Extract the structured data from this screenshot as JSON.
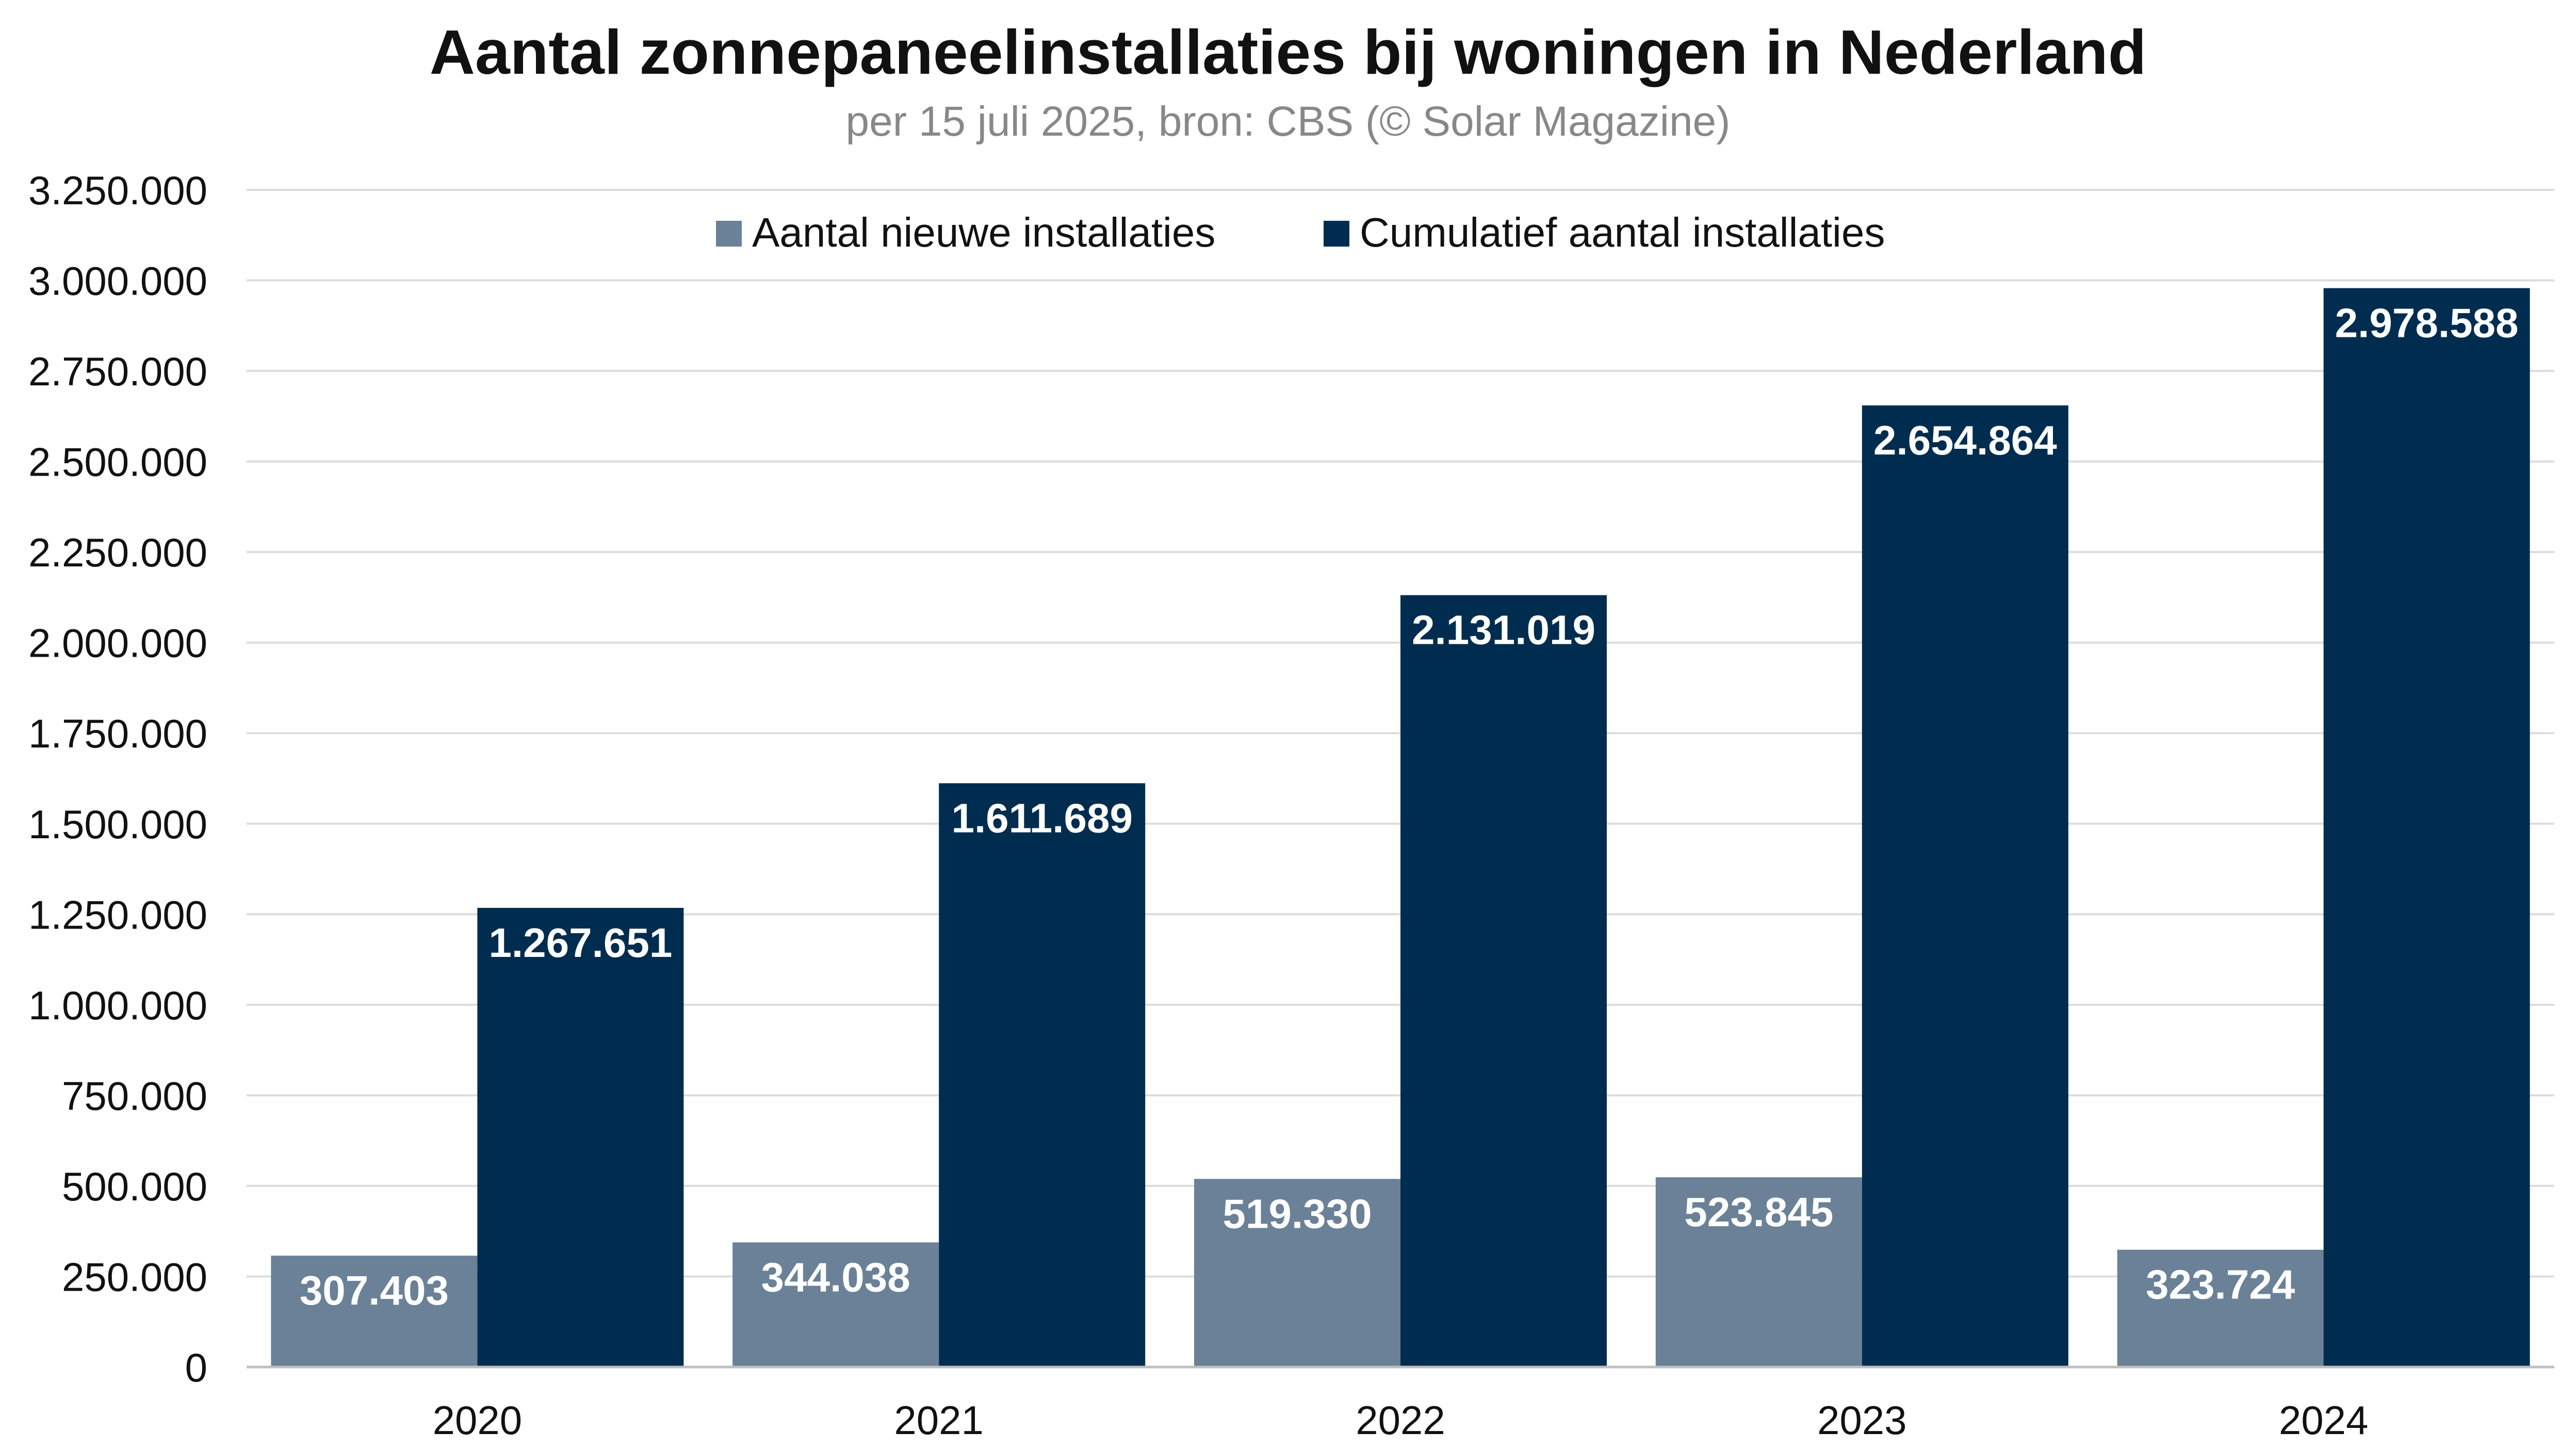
{
  "chart_data": {
    "type": "bar",
    "title": "Aantal zonnepaneelinstallaties bij woningen in Nederland",
    "subtitle": "per 15 juli 2025, bron: CBS (© Solar Magazine)",
    "xlabel": "",
    "ylabel": "",
    "categories": [
      "2020",
      "2021",
      "2022",
      "2023",
      "2024"
    ],
    "series": [
      {
        "name": "Aantal nieuwe installaties",
        "color": "#6a8197",
        "values": [
          307403,
          344038,
          519330,
          523845,
          323724
        ],
        "labels": [
          "307.403",
          "344.038",
          "519.330",
          "523.845",
          "323.724"
        ]
      },
      {
        "name": "Cumulatief aantal installaties",
        "color": "#002d4f",
        "values": [
          1267651,
          1611689,
          2131019,
          2654864,
          2978588
        ],
        "labels": [
          "1.267.651",
          "1.611.689",
          "2.131.019",
          "2.654.864",
          "2.978.588"
        ]
      }
    ],
    "ylim": [
      0,
      3250000
    ],
    "yticks": [
      0,
      250000,
      500000,
      750000,
      1000000,
      1250000,
      1500000,
      1750000,
      2000000,
      2250000,
      2500000,
      2750000,
      3000000,
      3250000
    ],
    "ytick_labels": [
      "0",
      "250.000",
      "500.000",
      "750.000",
      "1.000.000",
      "1.250.000",
      "1.500.000",
      "1.750.000",
      "2.000.000",
      "2.250.000",
      "2.500.000",
      "2.750.000",
      "3.000.000",
      "3.250.000"
    ],
    "grid": true,
    "legend_position": "top-center"
  }
}
